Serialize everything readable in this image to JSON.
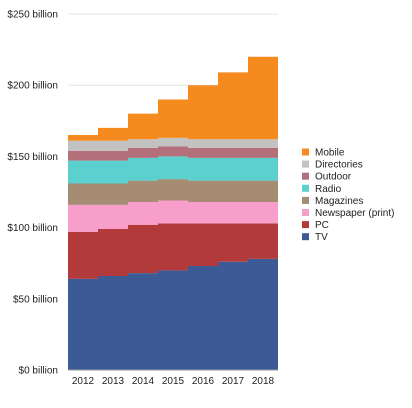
{
  "chart_data": {
    "type": "area",
    "stacked": true,
    "title": "",
    "xlabel": "",
    "ylabel": "",
    "x": [
      "2012",
      "2013",
      "2014",
      "2015",
      "2016",
      "2017",
      "2018"
    ],
    "ylim": [
      0,
      250
    ],
    "yticks": [
      0,
      50,
      100,
      150,
      200,
      250
    ],
    "ytick_labels": [
      "$0 billion",
      "$50 billion",
      "$100 billion",
      "$150 billion",
      "$200 billion",
      "$250 billion"
    ],
    "grid": true,
    "legend_position": "right",
    "series": [
      {
        "name": "TV",
        "color": "#3b5a96",
        "values": [
          64,
          66,
          68,
          70,
          73,
          76,
          78
        ]
      },
      {
        "name": "PC",
        "color": "#b23a3a",
        "values": [
          33,
          33,
          34,
          33,
          30,
          27,
          25
        ]
      },
      {
        "name": "Newspaper (print)",
        "color": "#f79ecb",
        "values": [
          19,
          17,
          16,
          16,
          15,
          15,
          15
        ]
      },
      {
        "name": "Magazines",
        "color": "#a68c72",
        "values": [
          15,
          15,
          15,
          15,
          15,
          15,
          15
        ]
      },
      {
        "name": "Radio",
        "color": "#5ccfcf",
        "values": [
          16,
          16,
          16,
          16,
          16,
          16,
          16
        ]
      },
      {
        "name": "Outdoor",
        "color": "#b3707a",
        "values": [
          7,
          7,
          7,
          7,
          7,
          7,
          7
        ]
      },
      {
        "name": "Directories",
        "color": "#c2c2c2",
        "values": [
          7,
          7,
          6,
          6,
          6,
          6,
          6
        ]
      },
      {
        "name": "Mobile",
        "color": "#f58a1f",
        "values": [
          4,
          9,
          18,
          27,
          38,
          47,
          58
        ]
      }
    ]
  }
}
